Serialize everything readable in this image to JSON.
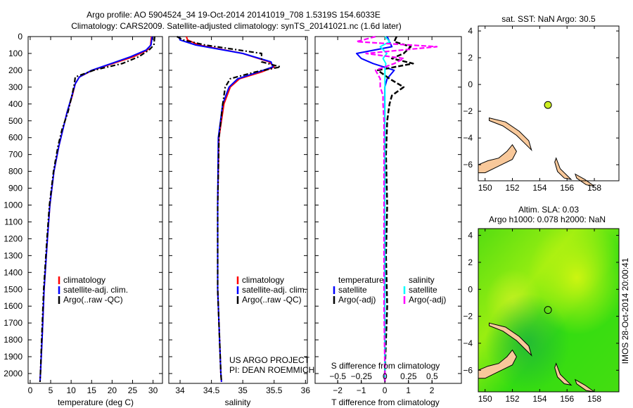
{
  "title": {
    "line1": "Argo profile: AO 5904524_34 19-Oct-2014 20141019_708 1.5319S 154.6033E",
    "line2": "Climatology: CARS2009. Satellite-adjusted climatology: synTS_20141021.nc (1.6d later)"
  },
  "colors": {
    "climatology": "#ff0000",
    "satellite": "#0000ff",
    "argo": "#000000",
    "sal_satellite": "#00ffff",
    "sal_argo": "#ff00ff",
    "land": "#f8c89a",
    "point": "#ccee22"
  },
  "chart_data": [
    {
      "type": "line",
      "id": "temperature",
      "xlabel": "temperature (deg C)",
      "xlim": [
        -0.5,
        32.3
      ],
      "ylim": [
        0,
        2150
      ],
      "xticks": [
        0,
        5,
        10,
        15,
        20,
        25,
        30
      ],
      "yticks": [
        0,
        100,
        200,
        300,
        400,
        500,
        600,
        700,
        800,
        900,
        1000,
        1100,
        1200,
        1300,
        1400,
        1500,
        1600,
        1700,
        1800,
        1900,
        2000
      ],
      "legend": [
        "climatology",
        "satellite-adj. clim.",
        "Argo(..raw -QC)"
      ],
      "depth": [
        0,
        50,
        80,
        120,
        160,
        200,
        240,
        280,
        350,
        450,
        550,
        650,
        800,
        1000,
        1200,
        1500,
        1800,
        2000,
        2050
      ],
      "series": [
        {
          "name": "climatology",
          "values": [
            29.6,
            29.4,
            28.6,
            25.2,
            20.2,
            15.2,
            12.0,
            11.0,
            10.3,
            9.0,
            8.0,
            7.0,
            5.8,
            4.8,
            4.2,
            3.4,
            2.9,
            2.5,
            2.4
          ]
        },
        {
          "name": "satellite-adj. clim.",
          "values": [
            29.8,
            29.5,
            28.3,
            24.5,
            19.8,
            15.0,
            12.0,
            11.0,
            10.2,
            9.0,
            8.0,
            7.0,
            5.8,
            4.8,
            4.2,
            3.4,
            2.9,
            2.5,
            2.4
          ]
        },
        {
          "name": "Argo(..raw -QC)",
          "values": [
            30.4,
            30.2,
            29.0,
            26.5,
            22.5,
            15.5,
            11.0,
            10.8,
            10.2,
            9.2,
            7.8,
            6.8,
            5.7,
            4.7,
            4.1,
            3.3,
            2.8,
            2.5,
            2.4
          ]
        }
      ]
    },
    {
      "type": "line",
      "id": "salinity",
      "xlabel": "salinity",
      "xlim": [
        33.82,
        36.03
      ],
      "ylim": [
        0,
        2150
      ],
      "xticks": [
        34,
        34.5,
        35,
        35.5,
        36
      ],
      "legend": [
        "climatology",
        "satellite-adj. clim.",
        "Argo(..raw -QC)"
      ],
      "annotation": [
        "US ARGO PROJECT",
        "PI: DEAN ROEMMICH"
      ],
      "depth": [
        0,
        20,
        50,
        100,
        150,
        180,
        210,
        250,
        300,
        400,
        600,
        1000,
        1500,
        2000,
        2050
      ],
      "series": [
        {
          "name": "climatology",
          "values": [
            34.1,
            34.12,
            34.3,
            35.0,
            35.42,
            35.5,
            35.3,
            34.95,
            34.8,
            34.7,
            34.62,
            34.6,
            34.6,
            34.65,
            34.66
          ]
        },
        {
          "name": "satellite-adj. clim.",
          "values": [
            33.98,
            34.0,
            34.25,
            35.0,
            35.45,
            35.48,
            35.25,
            34.92,
            34.78,
            34.68,
            34.61,
            34.6,
            34.6,
            34.65,
            34.66
          ]
        },
        {
          "name": "Argo(..raw -QC)",
          "values": [
            33.95,
            34.05,
            34.4,
            35.3,
            35.3,
            35.6,
            35.2,
            34.8,
            34.72,
            34.68,
            34.62,
            34.6,
            34.6,
            34.65,
            34.66
          ]
        }
      ]
    },
    {
      "type": "line",
      "id": "difference",
      "xlabel": "T difference from climatology",
      "xlabel_top": "S difference from climatology",
      "xlim": [
        -2.96,
        3.25
      ],
      "xticks": [
        -2,
        -1,
        0,
        1,
        2
      ],
      "xticks_top": [
        -0.5,
        -0.25,
        0,
        0.25,
        0.5
      ],
      "ylim": [
        0,
        2150
      ],
      "legend_headers": [
        "temperature",
        "salinity"
      ],
      "legend": [
        "satellite",
        "Argo(-adj)",
        "satellite",
        "Argo(-adj)"
      ],
      "depth": [
        0,
        30,
        60,
        100,
        130,
        160,
        200,
        250,
        300,
        350,
        400,
        500,
        700,
        1000,
        1300,
        1600,
        2000,
        2050
      ],
      "series": [
        {
          "name": "T satellite",
          "values": [
            0.1,
            0.2,
            0.3,
            -1.2,
            -1.0,
            -0.5,
            0.4,
            0.1,
            0.0,
            0.0,
            0.0,
            0.0,
            0.0,
            0.0,
            0.0,
            0.0,
            0.0,
            0.0
          ]
        },
        {
          "name": "T Argo(-adj)",
          "values": [
            0.5,
            0.4,
            1.1,
            0.8,
            0.3,
            1.2,
            -0.3,
            0.2,
            0.8,
            0.3,
            0.2,
            0.1,
            0.05,
            0.1,
            0.05,
            0.1,
            0.0,
            0.0
          ]
        },
        {
          "name": "S satellite",
          "values": [
            0.0,
            0.05,
            -0.05,
            0.02,
            -0.02,
            0.01,
            0.0,
            0.0,
            0.0,
            0.0,
            0.0,
            0.0,
            0.0,
            0.0,
            0.0,
            0.0,
            0.0,
            0.0
          ]
        },
        {
          "name": "S Argo(-adj)",
          "values": [
            -0.1,
            -0.3,
            0.55,
            -0.2,
            0.2,
            0.1,
            -0.1,
            -0.05,
            -0.05,
            -0.02,
            -0.02,
            -0.01,
            -0.01,
            -0.01,
            -0.01,
            -0.01,
            0.0,
            0.0
          ]
        }
      ]
    }
  ],
  "map1": {
    "title": "sat. SST: NaN Argo: 30.5",
    "lonlim": [
      149.5,
      159.8
    ],
    "latlim": [
      -7.2,
      4.37
    ],
    "xticks": [
      150,
      152,
      154,
      156,
      158
    ],
    "yticks": [
      4,
      2,
      0,
      -2,
      -4,
      -6
    ],
    "point": [
      154.6033,
      -1.5319
    ]
  },
  "map2": {
    "title1": "Altim. SLA: 0.03",
    "title2": "Argo h1000: 0.078 h2000: NaN",
    "lonlim": [
      149.5,
      159.8
    ],
    "latlim": [
      -7.6,
      4.5
    ],
    "xticks": [
      150,
      152,
      154,
      156,
      158
    ],
    "yticks": [
      4,
      2,
      0,
      -2,
      -4,
      -6
    ],
    "point": [
      154.6033,
      -1.5319
    ],
    "footer": "IMOS 28-Oct-2014 20:00:41"
  }
}
